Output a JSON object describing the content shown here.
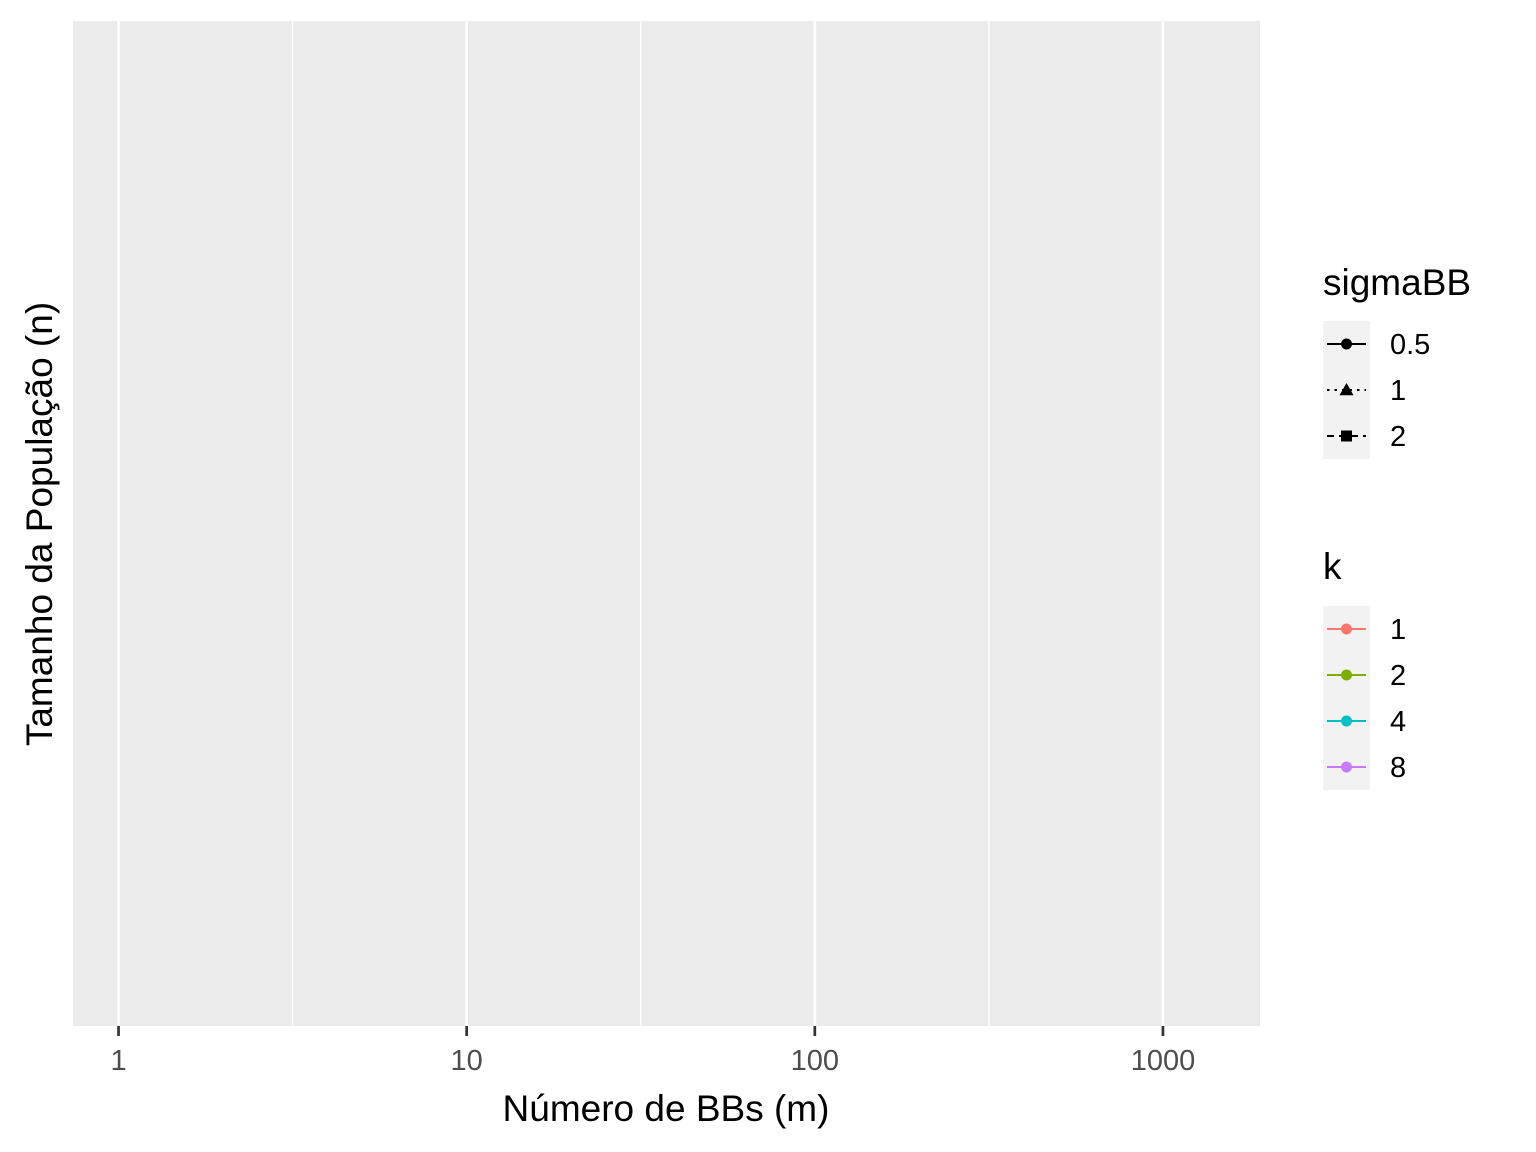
{
  "chart_data": {
    "type": "line",
    "title": "",
    "xlabel": "Número de BBs (m)",
    "ylabel": "Tamanho da População (n)",
    "x_scale": "log10",
    "xlim": [
      0.74,
      1900
    ],
    "x_ticks": [
      1,
      10,
      100,
      1000
    ],
    "x_tick_labels": [
      "1",
      "10",
      "100",
      "1000"
    ],
    "y_ticks": [],
    "grid": true,
    "series": [],
    "colors": {
      "panel_background": "#ebebeb",
      "grid": "#ffffff",
      "tick_text": "#4d4d4d",
      "tick_mark": "#333333",
      "legend_key_background": "#f2f2f2"
    },
    "legends": [
      {
        "title": "sigmaBB",
        "placement": "right",
        "aesthetic": "shape-linetype",
        "entries": [
          {
            "label": "0.5",
            "shape": "circle",
            "linetype": "solid",
            "color": "#000000"
          },
          {
            "label": "1",
            "shape": "triangle",
            "linetype": "dotted",
            "color": "#000000"
          },
          {
            "label": "2",
            "shape": "square",
            "linetype": "dashed",
            "color": "#000000"
          }
        ]
      },
      {
        "title": "k",
        "placement": "right",
        "aesthetic": "colour",
        "entries": [
          {
            "label": "1",
            "shape": "circle",
            "linetype": "solid",
            "color": "#f8766d"
          },
          {
            "label": "2",
            "shape": "circle",
            "linetype": "solid",
            "color": "#7cae00"
          },
          {
            "label": "4",
            "shape": "circle",
            "linetype": "solid",
            "color": "#00bfc4"
          },
          {
            "label": "8",
            "shape": "circle",
            "linetype": "solid",
            "color": "#c77cff"
          }
        ]
      }
    ]
  }
}
